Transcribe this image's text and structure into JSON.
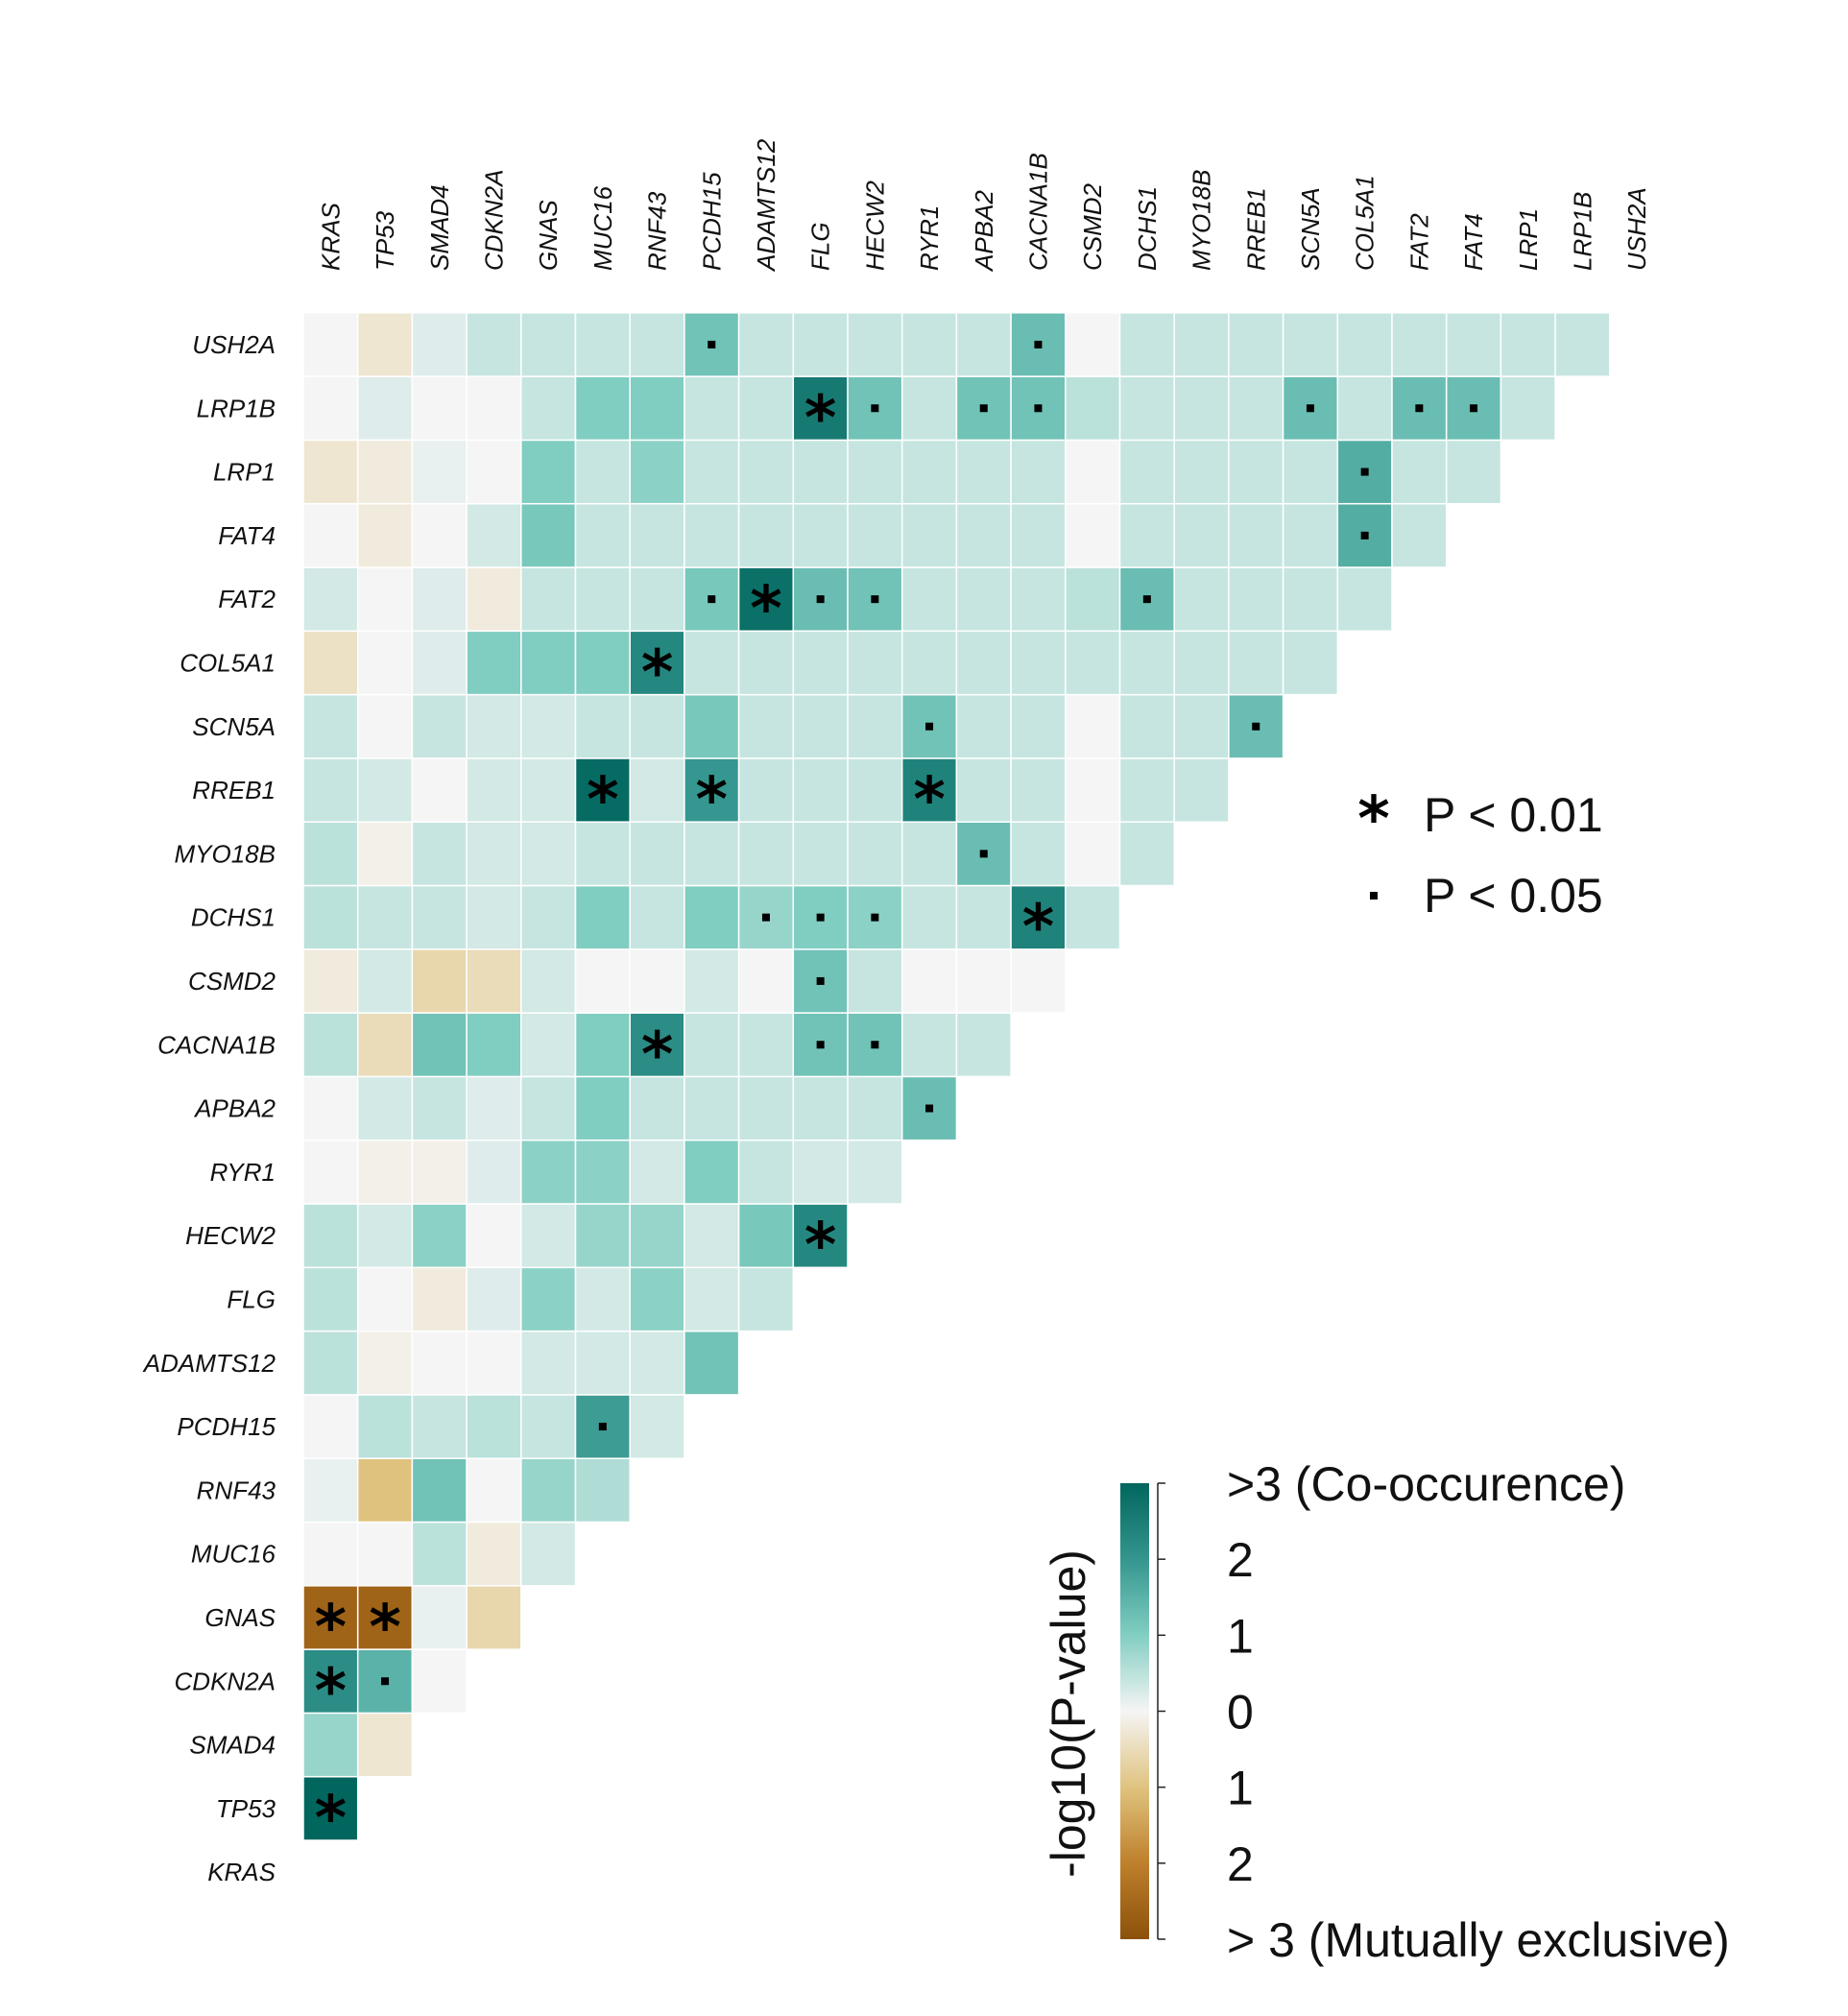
{
  "chart_data": {
    "type": "heatmap",
    "genes": [
      "KRAS",
      "TP53",
      "SMAD4",
      "CDKN2A",
      "GNAS",
      "MUC16",
      "RNF43",
      "PCDH15",
      "ADAMTS12",
      "FLG",
      "HECW2",
      "RYR1",
      "APBA2",
      "CACNA1B",
      "CSMD2",
      "DCHS1",
      "MYO18B",
      "RREB1",
      "SCN5A",
      "COL5A1",
      "FAT2",
      "FAT4",
      "LRP1",
      "LRP1B",
      "USH2A"
    ],
    "values": [
      [],
      [
        3.2
      ],
      [
        0.8,
        -0.3
      ],
      [
        2.2,
        1.5,
        0.0
      ],
      [
        -2.6,
        -2.6,
        0.1,
        -0.6
      ],
      [
        0.0,
        0.0,
        0.5,
        -0.2,
        0.3
      ],
      [
        0.1,
        -1.0,
        1.2,
        0.0,
        0.8,
        0.6
      ],
      [
        0.0,
        0.5,
        0.4,
        0.5,
        0.4,
        1.9,
        0.3
      ],
      [
        0.5,
        -0.1,
        0.0,
        0.0,
        0.3,
        0.3,
        0.3,
        1.2
      ],
      [
        0.5,
        0.0,
        -0.2,
        0.2,
        0.9,
        0.3,
        0.9,
        0.3,
        0.4
      ],
      [
        0.5,
        0.3,
        0.9,
        0.0,
        0.3,
        0.8,
        0.8,
        0.3,
        1.1,
        2.3
      ],
      [
        0.0,
        -0.1,
        -0.1,
        0.2,
        0.9,
        0.9,
        0.3,
        1.0,
        0.4,
        0.3,
        0.3
      ],
      [
        0.0,
        0.3,
        0.4,
        0.2,
        0.4,
        1.0,
        0.4,
        0.4,
        0.4,
        0.4,
        0.4,
        1.3
      ],
      [
        0.5,
        -0.5,
        1.2,
        1.0,
        0.3,
        1.0,
        2.2,
        0.4,
        0.4,
        1.2,
        1.2,
        0.4,
        0.4
      ],
      [
        -0.2,
        0.3,
        -0.6,
        -0.5,
        0.3,
        0.0,
        0.0,
        0.3,
        0.0,
        1.2,
        0.4,
        0.0,
        0.0,
        0.0
      ],
      [
        0.5,
        0.4,
        0.4,
        0.3,
        0.4,
        1.0,
        0.4,
        1.0,
        0.8,
        1.0,
        0.9,
        0.4,
        0.4,
        2.4,
        0.4
      ],
      [
        0.5,
        -0.1,
        0.4,
        0.3,
        0.3,
        0.4,
        0.4,
        0.4,
        0.4,
        0.4,
        0.4,
        0.4,
        1.3,
        0.4,
        0.0,
        0.4
      ],
      [
        0.4,
        0.3,
        0.0,
        0.3,
        0.3,
        2.9,
        0.3,
        2.0,
        0.4,
        0.4,
        0.4,
        2.4,
        0.4,
        0.4,
        0.0,
        0.4,
        0.4
      ],
      [
        0.4,
        0.0,
        0.4,
        0.3,
        0.3,
        0.4,
        0.4,
        1.1,
        0.4,
        0.4,
        0.4,
        1.2,
        0.4,
        0.4,
        0.0,
        0.4,
        0.4,
        1.3
      ],
      [
        -0.4,
        0.0,
        0.2,
        1.0,
        1.0,
        1.0,
        2.3,
        0.4,
        0.4,
        0.4,
        0.4,
        0.4,
        0.4,
        0.4,
        0.4,
        0.4,
        0.4,
        0.4,
        0.4
      ],
      [
        0.3,
        0.0,
        0.2,
        -0.2,
        0.4,
        0.4,
        0.4,
        1.1,
        2.8,
        1.3,
        1.2,
        0.4,
        0.4,
        0.4,
        0.5,
        1.3,
        0.4,
        0.4,
        0.4,
        0.4
      ],
      [
        0.0,
        -0.2,
        0.0,
        0.3,
        1.1,
        0.4,
        0.4,
        0.4,
        0.4,
        0.4,
        0.4,
        0.4,
        0.4,
        0.4,
        0.0,
        0.4,
        0.4,
        0.4,
        0.4,
        1.6,
        0.4
      ],
      [
        -0.3,
        -0.2,
        0.1,
        0.0,
        1.0,
        0.4,
        0.9,
        0.4,
        0.4,
        0.4,
        0.4,
        0.4,
        0.4,
        0.4,
        0.0,
        0.4,
        0.4,
        0.4,
        0.4,
        1.6,
        0.4,
        0.4
      ],
      [
        0.0,
        0.2,
        0.0,
        0.0,
        0.4,
        1.0,
        1.0,
        0.4,
        0.4,
        2.6,
        1.2,
        0.4,
        1.2,
        1.2,
        0.5,
        0.4,
        0.4,
        0.4,
        1.3,
        0.4,
        1.3,
        1.3,
        0.4
      ],
      [
        0.0,
        -0.3,
        0.2,
        0.4,
        0.4,
        0.4,
        0.4,
        1.2,
        0.4,
        0.4,
        0.4,
        0.4,
        0.4,
        1.3,
        0.0,
        0.4,
        0.4,
        0.4,
        0.4,
        0.4,
        0.4,
        0.4,
        0.4,
        0.4
      ]
    ],
    "significance": [
      {
        "row": "TP53",
        "col": "KRAS",
        "level": "**"
      },
      {
        "row": "CDKN2A",
        "col": "KRAS",
        "level": "**"
      },
      {
        "row": "CDKN2A",
        "col": "TP53",
        "level": "*"
      },
      {
        "row": "GNAS",
        "col": "KRAS",
        "level": "**"
      },
      {
        "row": "GNAS",
        "col": "TP53",
        "level": "**"
      },
      {
        "row": "PCDH15",
        "col": "MUC16",
        "level": "*"
      },
      {
        "row": "HECW2",
        "col": "FLG",
        "level": "**"
      },
      {
        "row": "APBA2",
        "col": "RYR1",
        "level": "*"
      },
      {
        "row": "CACNA1B",
        "col": "RNF43",
        "level": "**"
      },
      {
        "row": "CACNA1B",
        "col": "FLG",
        "level": "*"
      },
      {
        "row": "CACNA1B",
        "col": "HECW2",
        "level": "*"
      },
      {
        "row": "CSMD2",
        "col": "FLG",
        "level": "*"
      },
      {
        "row": "DCHS1",
        "col": "ADAMTS12",
        "level": "*"
      },
      {
        "row": "DCHS1",
        "col": "FLG",
        "level": "*"
      },
      {
        "row": "DCHS1",
        "col": "HECW2",
        "level": "*"
      },
      {
        "row": "DCHS1",
        "col": "CACNA1B",
        "level": "**"
      },
      {
        "row": "MYO18B",
        "col": "APBA2",
        "level": "*"
      },
      {
        "row": "RREB1",
        "col": "MUC16",
        "level": "**"
      },
      {
        "row": "RREB1",
        "col": "PCDH15",
        "level": "**"
      },
      {
        "row": "RREB1",
        "col": "RYR1",
        "level": "**"
      },
      {
        "row": "SCN5A",
        "col": "RYR1",
        "level": "*"
      },
      {
        "row": "SCN5A",
        "col": "RREB1",
        "level": "*"
      },
      {
        "row": "COL5A1",
        "col": "RNF43",
        "level": "**"
      },
      {
        "row": "FAT2",
        "col": "PCDH15",
        "level": "*"
      },
      {
        "row": "FAT2",
        "col": "ADAMTS12",
        "level": "**"
      },
      {
        "row": "FAT2",
        "col": "FLG",
        "level": "*"
      },
      {
        "row": "FAT2",
        "col": "HECW2",
        "level": "*"
      },
      {
        "row": "FAT2",
        "col": "DCHS1",
        "level": "*"
      },
      {
        "row": "FAT4",
        "col": "COL5A1",
        "level": "*"
      },
      {
        "row": "LRP1",
        "col": "COL5A1",
        "level": "*"
      },
      {
        "row": "LRP1B",
        "col": "FLG",
        "level": "**"
      },
      {
        "row": "LRP1B",
        "col": "HECW2",
        "level": "*"
      },
      {
        "row": "LRP1B",
        "col": "APBA2",
        "level": "*"
      },
      {
        "row": "LRP1B",
        "col": "CACNA1B",
        "level": "*"
      },
      {
        "row": "LRP1B",
        "col": "SCN5A",
        "level": "*"
      },
      {
        "row": "LRP1B",
        "col": "FAT2",
        "level": "*"
      },
      {
        "row": "LRP1B",
        "col": "FAT4",
        "level": "*"
      },
      {
        "row": "USH2A",
        "col": "PCDH15",
        "level": "*"
      },
      {
        "row": "USH2A",
        "col": "CACNA1B",
        "level": "*"
      }
    ],
    "significance_legend": [
      {
        "symbol": "*",
        "label": "P < 0.01"
      },
      {
        "symbol": "·",
        "label": "P < 0.05"
      }
    ],
    "colorbar": {
      "title": "-log10(P-value)",
      "tick_labels": [
        ">3 (Co-occurence)",
        "2",
        "1",
        "0",
        "1",
        "2",
        "> 3 (Mutually exclusive)"
      ],
      "colors": {
        "co_occurrence": "#01665e",
        "neutral": "#f5f5f5",
        "mutually_exclusive": "#8c510a"
      },
      "range": [
        -3,
        3
      ]
    },
    "colors": {
      "high": "#01665e",
      "mid_high": "#35978f",
      "low_pos": "#80cdc1",
      "pale_pos": "#c7eae5",
      "neutral": "#f5f5f5",
      "pale_neg": "#f6e8c3",
      "low_neg": "#dfc27d",
      "mid_neg": "#bf812d",
      "neg": "#8c510a"
    }
  }
}
